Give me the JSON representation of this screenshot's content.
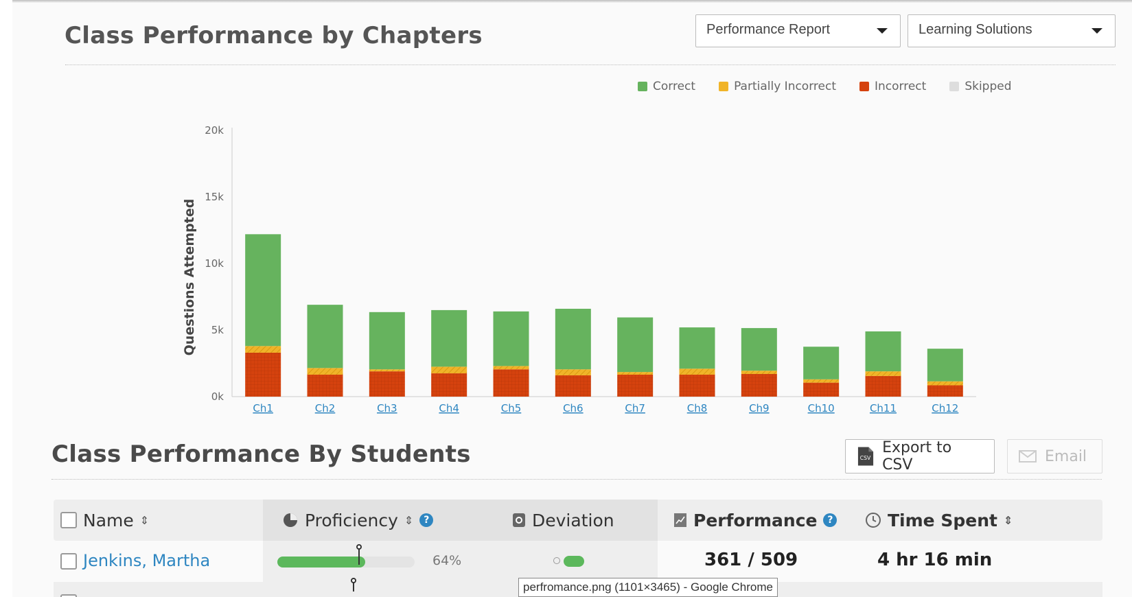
{
  "header": {
    "chapters_title": "Class Performance by Chapters",
    "report_dropdown": "Performance Report",
    "solutions_dropdown": "Learning Solutions"
  },
  "colors": {
    "correct": "#66b35e",
    "partially_incorrect": "#f0b429",
    "incorrect": "#d5420e",
    "skipped": "#dddddd",
    "link": "#2e86c1"
  },
  "legend": [
    {
      "label": "Correct",
      "color": "#66b35e"
    },
    {
      "label": "Partially Incorrect",
      "color": "#f0b429"
    },
    {
      "label": "Incorrect",
      "color": "#d5420e"
    },
    {
      "label": "Skipped",
      "color": "#dddddd"
    }
  ],
  "chart_data": {
    "type": "bar",
    "stacked": true,
    "title": "",
    "xlabel": "",
    "ylabel": "Questions Attempted",
    "ylim": [
      0,
      20000
    ],
    "yticks": [
      "0k",
      "5k",
      "10k",
      "15k",
      "20k"
    ],
    "ytick_values": [
      0,
      5000,
      10000,
      15000,
      20000
    ],
    "categories": [
      "Ch1",
      "Ch2",
      "Ch3",
      "Ch4",
      "Ch5",
      "Ch6",
      "Ch7",
      "Ch8",
      "Ch9",
      "Ch10",
      "Ch11",
      "Ch12"
    ],
    "series": [
      {
        "name": "Incorrect",
        "values": [
          3300,
          1650,
          1900,
          1750,
          2050,
          1600,
          1650,
          1650,
          1700,
          1050,
          1550,
          850
        ]
      },
      {
        "name": "Partially Incorrect",
        "values": [
          500,
          500,
          150,
          500,
          250,
          450,
          200,
          450,
          250,
          250,
          350,
          300
        ]
      },
      {
        "name": "Correct",
        "values": [
          8400,
          4750,
          4300,
          4250,
          4100,
          4550,
          4100,
          3100,
          3200,
          2450,
          3000,
          2450
        ]
      },
      {
        "name": "Skipped",
        "values": [
          0,
          0,
          0,
          0,
          0,
          0,
          0,
          0,
          0,
          0,
          0,
          0
        ]
      }
    ],
    "grid": false,
    "legend_position": "top-right"
  },
  "students_section": {
    "title": "Class Performance By Students",
    "export_label": "Export to CSV",
    "email_label": "Email"
  },
  "table": {
    "headers": {
      "name": "Name",
      "proficiency": "Proficiency",
      "deviation": "Deviation",
      "performance": "Performance",
      "time_spent": "Time Spent"
    },
    "rows": [
      {
        "name": "Jenkins, Martha",
        "proficiency_fraction": 0.64,
        "proficiency_text": "64%",
        "performance": "361 / 509",
        "time_spent": "4 hr 16 min"
      }
    ]
  },
  "tooltip": "perfromance.png (1101×3465) - Google Chrome"
}
